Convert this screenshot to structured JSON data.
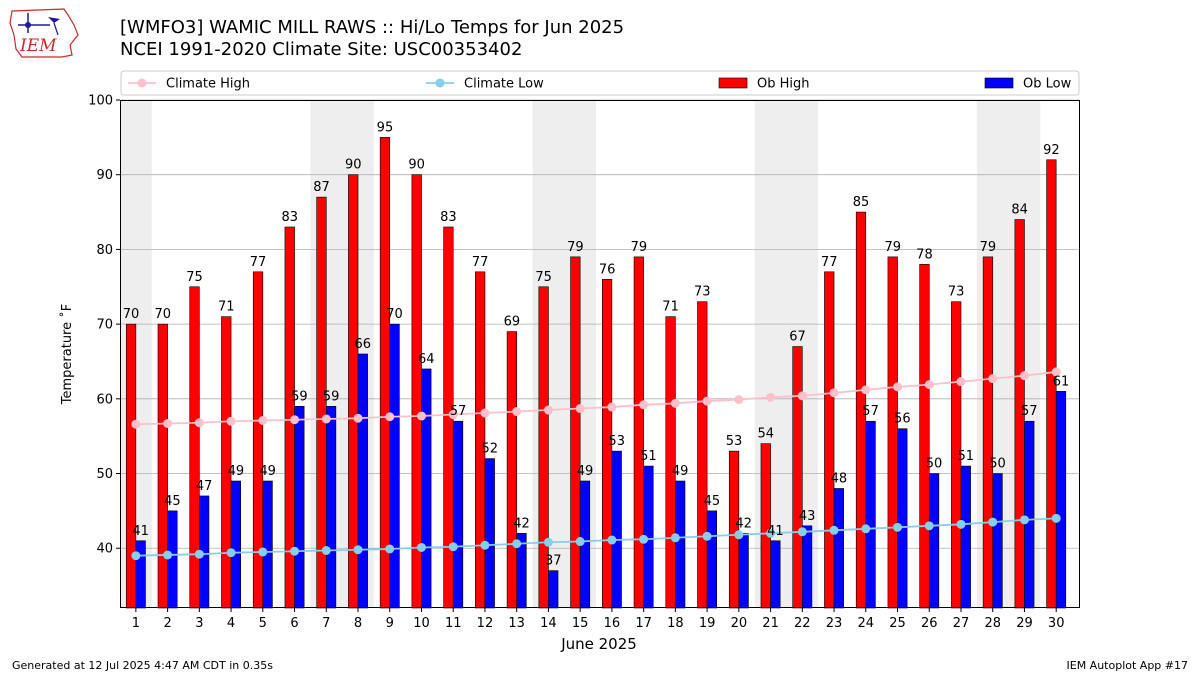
{
  "header": {
    "title_line1": "[WMFO3] WAMIC MILL RAWS :: Hi/Lo Temps for Jun 2025",
    "title_line2": "NCEI 1991-2020 Climate Site: USC00353402",
    "logo_text": "IEM"
  },
  "footer": {
    "generated": "Generated at 12 Jul 2025 4:47 AM CDT in 0.35s",
    "app": "IEM Autoplot App #17"
  },
  "colors": {
    "ob_high": "#ff0000",
    "ob_low": "#0000ff",
    "climate_high": "#ffc0cb",
    "climate_low": "#87ceeb",
    "weekend_shade": "#eeeeee",
    "grid": "#b0b0b0"
  },
  "chart_data": {
    "type": "bar",
    "xlabel": "June 2025",
    "ylabel": "Temperature $^\\circ$F",
    "ylabel_display": "Temperature ˚F",
    "ylim": [
      32,
      100
    ],
    "yticks": [
      40,
      50,
      60,
      70,
      80,
      90,
      100
    ],
    "grid": "horizontal",
    "legend_placement": "top",
    "categories": [
      "1",
      "2",
      "3",
      "4",
      "5",
      "6",
      "7",
      "8",
      "9",
      "10",
      "11",
      "12",
      "13",
      "14",
      "15",
      "16",
      "17",
      "18",
      "19",
      "20",
      "21",
      "22",
      "23",
      "24",
      "25",
      "26",
      "27",
      "28",
      "29",
      "30"
    ],
    "shaded_days": [
      1,
      7,
      8,
      14,
      15,
      21,
      22,
      28,
      29
    ],
    "series": [
      {
        "name": "Ob High",
        "kind": "bar",
        "values": [
          70,
          70,
          75,
          71,
          77,
          83,
          87,
          90,
          95,
          90,
          83,
          77,
          69,
          75,
          79,
          76,
          79,
          71,
          73,
          53,
          54,
          67,
          77,
          85,
          79,
          78,
          73,
          79,
          84,
          92
        ]
      },
      {
        "name": "Ob Low",
        "kind": "bar",
        "values": [
          41,
          45,
          47,
          49,
          49,
          59,
          59,
          66,
          70,
          64,
          57,
          52,
          42,
          37,
          49,
          53,
          51,
          49,
          45,
          42,
          41,
          43,
          48,
          57,
          56,
          50,
          51,
          50,
          57,
          61
        ]
      },
      {
        "name": "Climate High",
        "kind": "line",
        "values": [
          56.6,
          56.7,
          56.8,
          57.0,
          57.1,
          57.2,
          57.3,
          57.4,
          57.6,
          57.7,
          57.9,
          58.1,
          58.3,
          58.5,
          58.7,
          58.9,
          59.2,
          59.4,
          59.7,
          59.9,
          60.2,
          60.4,
          60.8,
          61.2,
          61.6,
          61.9,
          62.3,
          62.7,
          63.1,
          63.6
        ]
      },
      {
        "name": "Climate Low",
        "kind": "line",
        "values": [
          39.0,
          39.1,
          39.2,
          39.4,
          39.5,
          39.6,
          39.7,
          39.8,
          39.9,
          40.1,
          40.2,
          40.4,
          40.6,
          40.8,
          40.9,
          41.1,
          41.2,
          41.4,
          41.6,
          41.8,
          42.0,
          42.2,
          42.4,
          42.6,
          42.8,
          43.0,
          43.2,
          43.5,
          43.8,
          44.0
        ]
      }
    ],
    "legend": [
      "Climate High",
      "Climate Low",
      "Ob High",
      "Ob Low"
    ]
  }
}
